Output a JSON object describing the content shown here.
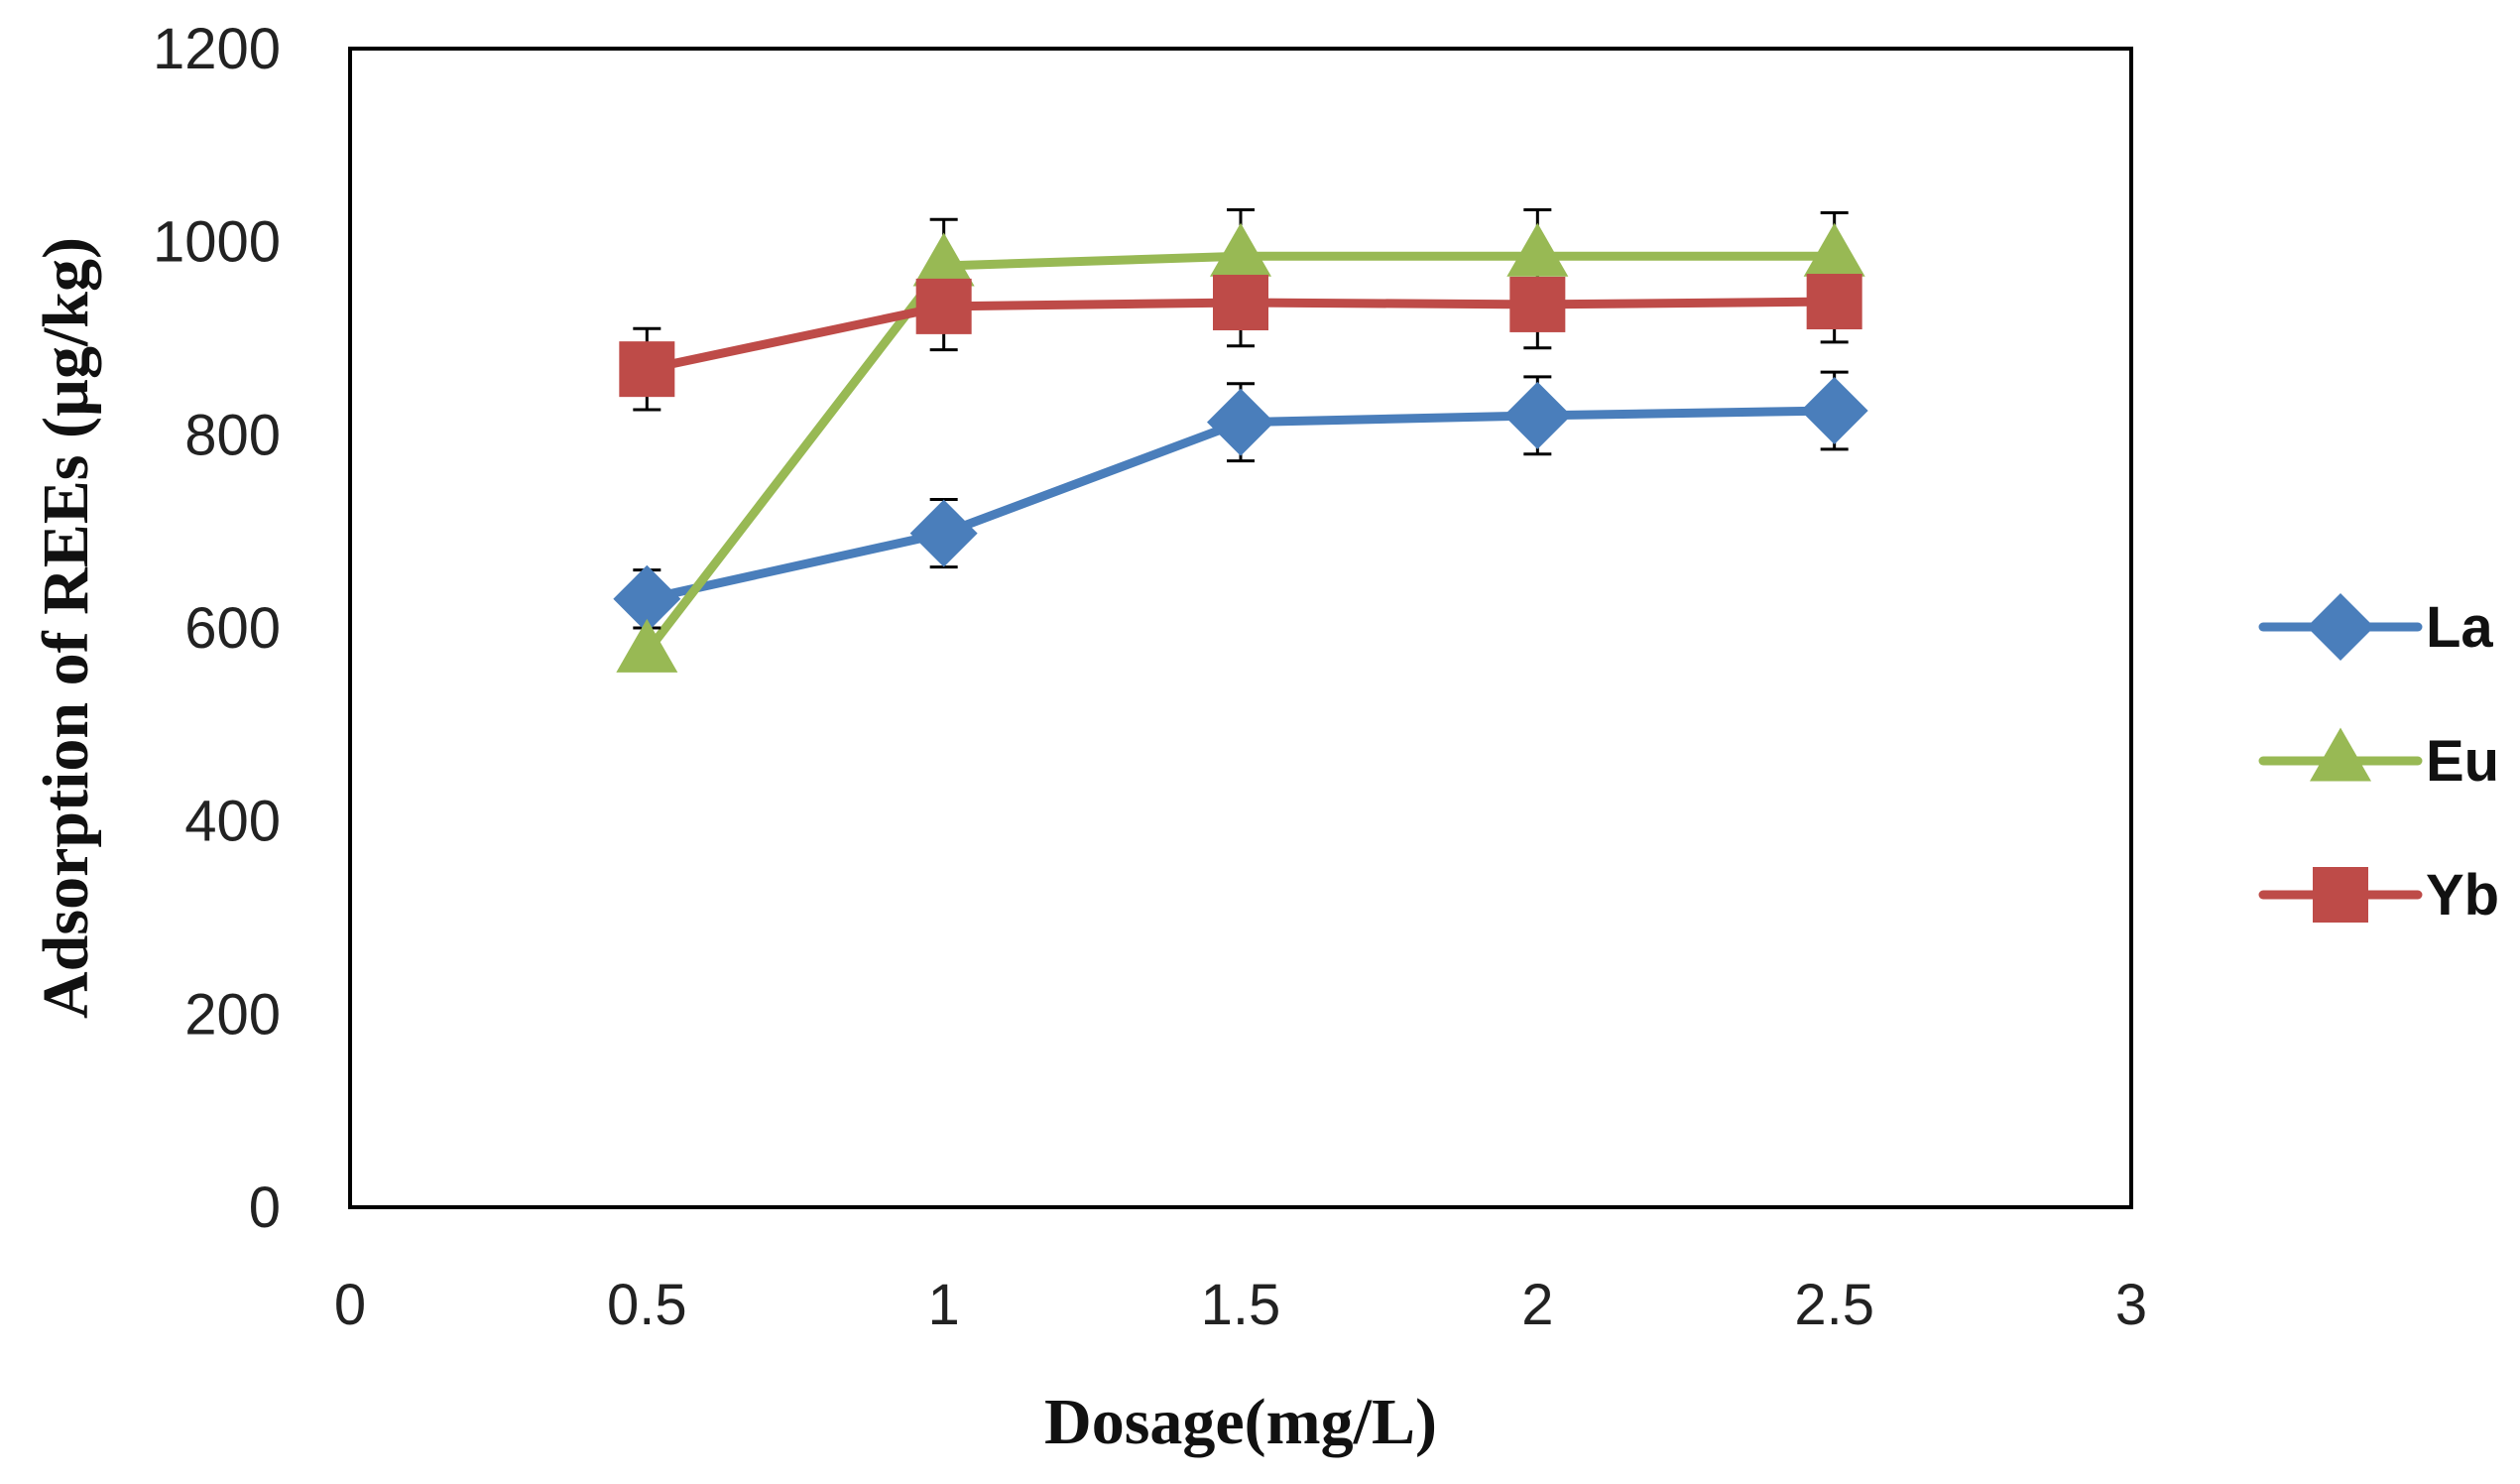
{
  "chart_data": {
    "type": "line",
    "title": "",
    "xlabel": "Dosage(mg/L)",
    "ylabel": "Adsorption of REEs (µg/kg)",
    "xlim": [
      0,
      3
    ],
    "ylim": [
      0,
      1200
    ],
    "x_ticks": [
      "0",
      "0.5",
      "1",
      "1.5",
      "2",
      "2.5",
      "3"
    ],
    "y_ticks": [
      "0",
      "200",
      "400",
      "600",
      "800",
      "1000",
      "1200"
    ],
    "x": [
      0.5,
      1,
      1.5,
      2,
      2.5
    ],
    "grid": false,
    "legend_position": "right",
    "series": [
      {
        "name": "La",
        "color": "#4a7ebb",
        "marker": "diamond",
        "values": [
          630,
          698,
          813,
          820,
          825
        ],
        "errors": [
          30,
          35,
          40,
          40,
          40
        ]
      },
      {
        "name": "Eu",
        "color": "#98b954",
        "marker": "triangle",
        "values": [
          575,
          975,
          985,
          985,
          985
        ],
        "errors": [
          0,
          48,
          48,
          48,
          45
        ]
      },
      {
        "name": "Yb",
        "color": "#be4b48",
        "marker": "square",
        "values": [
          868,
          933,
          937,
          935,
          938
        ],
        "errors": [
          42,
          45,
          45,
          45,
          42
        ]
      }
    ]
  }
}
